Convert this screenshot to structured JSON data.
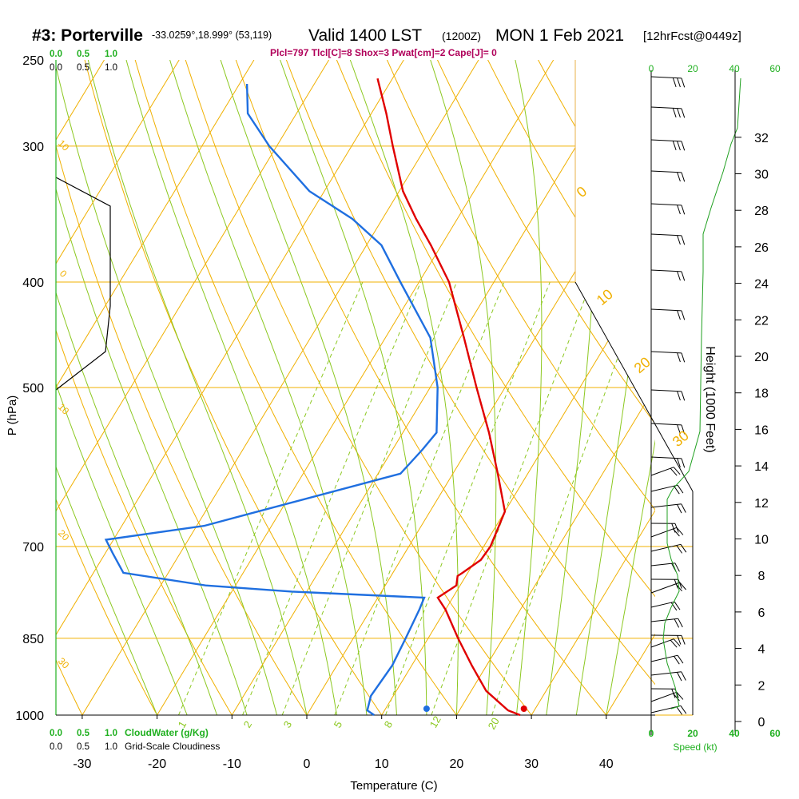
{
  "header": {
    "station": "#3: Porterville",
    "location": "-33.0259°,18.999° (53,119)",
    "valid": "Valid 1400 LST",
    "utc": "(1200Z)",
    "date": "MON 1 Feb 2021",
    "forecast": "[12hrFcst@0449z]",
    "indices": "Plcl=797 Tlcl[C]=8 Shox=3 Pwat[cm]=2 Cape[J]= 0"
  },
  "colors": {
    "temperature": "#e00000",
    "dewpoint": "#1f6fe0",
    "isotherm": "#f0b000",
    "dry_adiabat": "#f0b000",
    "moist_adiabat": "#8cc820",
    "mixing_ratio": "#8cc820",
    "cloud_water": "#20b020",
    "header_indices": "#b0005a"
  },
  "chart_data": {
    "type": "line",
    "title": "#3: Porterville",
    "xlabel": "Temperature (C)",
    "ylabel": "P (hPa)",
    "y2label": "Height (1000 Feet)",
    "xlim": [
      -35,
      45
    ],
    "ylim": [
      1000,
      250
    ],
    "log_y": true,
    "pressure_ticks": [
      1000,
      850,
      700,
      500,
      400,
      300,
      250
    ],
    "temp_ticks": [
      -30,
      -20,
      -10,
      0,
      10,
      20,
      30,
      40
    ],
    "height_ticks": [
      0,
      2,
      4,
      6,
      8,
      10,
      12,
      14,
      16,
      18,
      20,
      22,
      24,
      26,
      28,
      30,
      32
    ],
    "top_scale_green": [
      "0.0",
      "0.5",
      "1.0"
    ],
    "top_scale_black": [
      "0.0",
      "0.5",
      "1.0"
    ],
    "bottom_cloudwater_ticks": [
      "0.0",
      "0.5",
      "1.0"
    ],
    "bottom_cloudwater_label": "CloudWater (g/Kg)",
    "bottom_cloudiness_ticks": [
      "0.0",
      "0.5",
      "1.0"
    ],
    "bottom_cloudiness_label": "Grid-Scale Cloudiness",
    "speed_ticks": [
      "0",
      "20",
      "40",
      "60"
    ],
    "speed_label": "Speed (kt)",
    "dry_adiabat_labels": [
      "0",
      "10",
      "20",
      "30"
    ],
    "left_edge_labels": [
      "10",
      "0",
      "10",
      "20",
      "30"
    ],
    "mixing_ratio_labels": [
      "1",
      "2",
      "3",
      "5",
      "8",
      "12",
      "20"
    ],
    "series": [
      {
        "name": "Temperature",
        "points": [
          [
            1000,
            28.5
          ],
          [
            990,
            26.5
          ],
          [
            950,
            22
          ],
          [
            900,
            18
          ],
          [
            850,
            14
          ],
          [
            800,
            10
          ],
          [
            780,
            8
          ],
          [
            760,
            9.5
          ],
          [
            745,
            8.9
          ],
          [
            740,
            9.3
          ],
          [
            720,
            10.7
          ],
          [
            700,
            10.9
          ],
          [
            650,
            10
          ],
          [
            600,
            6
          ],
          [
            550,
            1.5
          ],
          [
            500,
            -3.8
          ],
          [
            450,
            -9.5
          ],
          [
            400,
            -16
          ],
          [
            370,
            -21.4
          ],
          [
            350,
            -25.5
          ],
          [
            330,
            -29.5
          ],
          [
            300,
            -34.5
          ],
          [
            280,
            -38
          ],
          [
            260,
            -42
          ]
        ]
      },
      {
        "name": "Dewpoint",
        "points": [
          [
            1000,
            9
          ],
          [
            990,
            7.7
          ],
          [
            960,
            7
          ],
          [
            900,
            7.4
          ],
          [
            850,
            7
          ],
          [
            800,
            6.5
          ],
          [
            780,
            6.2
          ],
          [
            770,
            -12
          ],
          [
            760,
            -24
          ],
          [
            740,
            -36
          ],
          [
            710,
            -39
          ],
          [
            690,
            -41
          ],
          [
            670,
            -29
          ],
          [
            650,
            -23
          ],
          [
            600,
            -7
          ],
          [
            570,
            -6
          ],
          [
            550,
            -5.5
          ],
          [
            500,
            -9
          ],
          [
            450,
            -14
          ],
          [
            400,
            -22.5
          ],
          [
            370,
            -28
          ],
          [
            350,
            -34
          ],
          [
            330,
            -42
          ],
          [
            300,
            -51
          ],
          [
            280,
            -56.5
          ],
          [
            263,
            -59
          ]
        ]
      }
    ],
    "surface_temperature": 29,
    "surface_dewpoint": 16
  }
}
